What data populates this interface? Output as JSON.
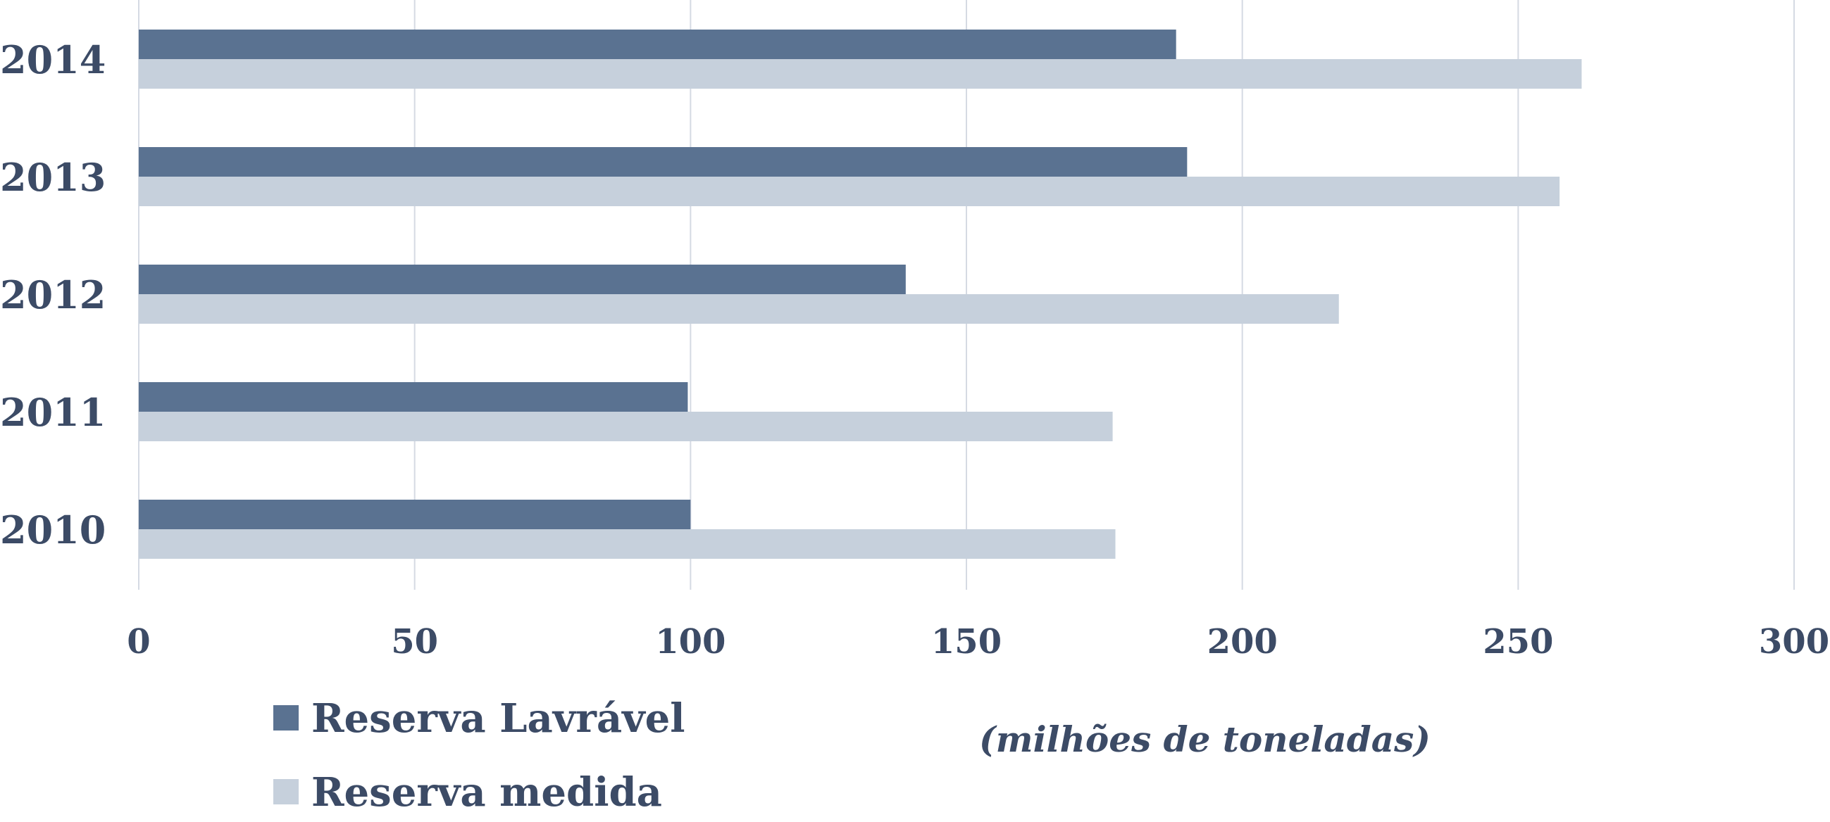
{
  "chart_data": {
    "type": "bar",
    "orientation": "horizontal",
    "categories": [
      "2014",
      "2013",
      "2012",
      "2011",
      "2010"
    ],
    "series": [
      {
        "name": "Reserva Lavrável",
        "values": [
          188,
          190,
          139,
          99.5,
          100
        ]
      },
      {
        "name": "Reserva medida",
        "values": [
          261.5,
          257.5,
          217.5,
          176.5,
          177
        ]
      }
    ],
    "xlabel": "(milhões de toneladas)",
    "ylabel": "",
    "title": "",
    "xlim": [
      0,
      300
    ],
    "xticks": [
      "0",
      "50",
      "100",
      "150",
      "200",
      "250",
      "300"
    ],
    "grid": "vertical",
    "legend_position": "bottom-left",
    "colors": {
      "series": [
        "#5a7291",
        "#c6d0dc"
      ],
      "text": "#3c4b66",
      "grid": "#d5dae3"
    }
  }
}
